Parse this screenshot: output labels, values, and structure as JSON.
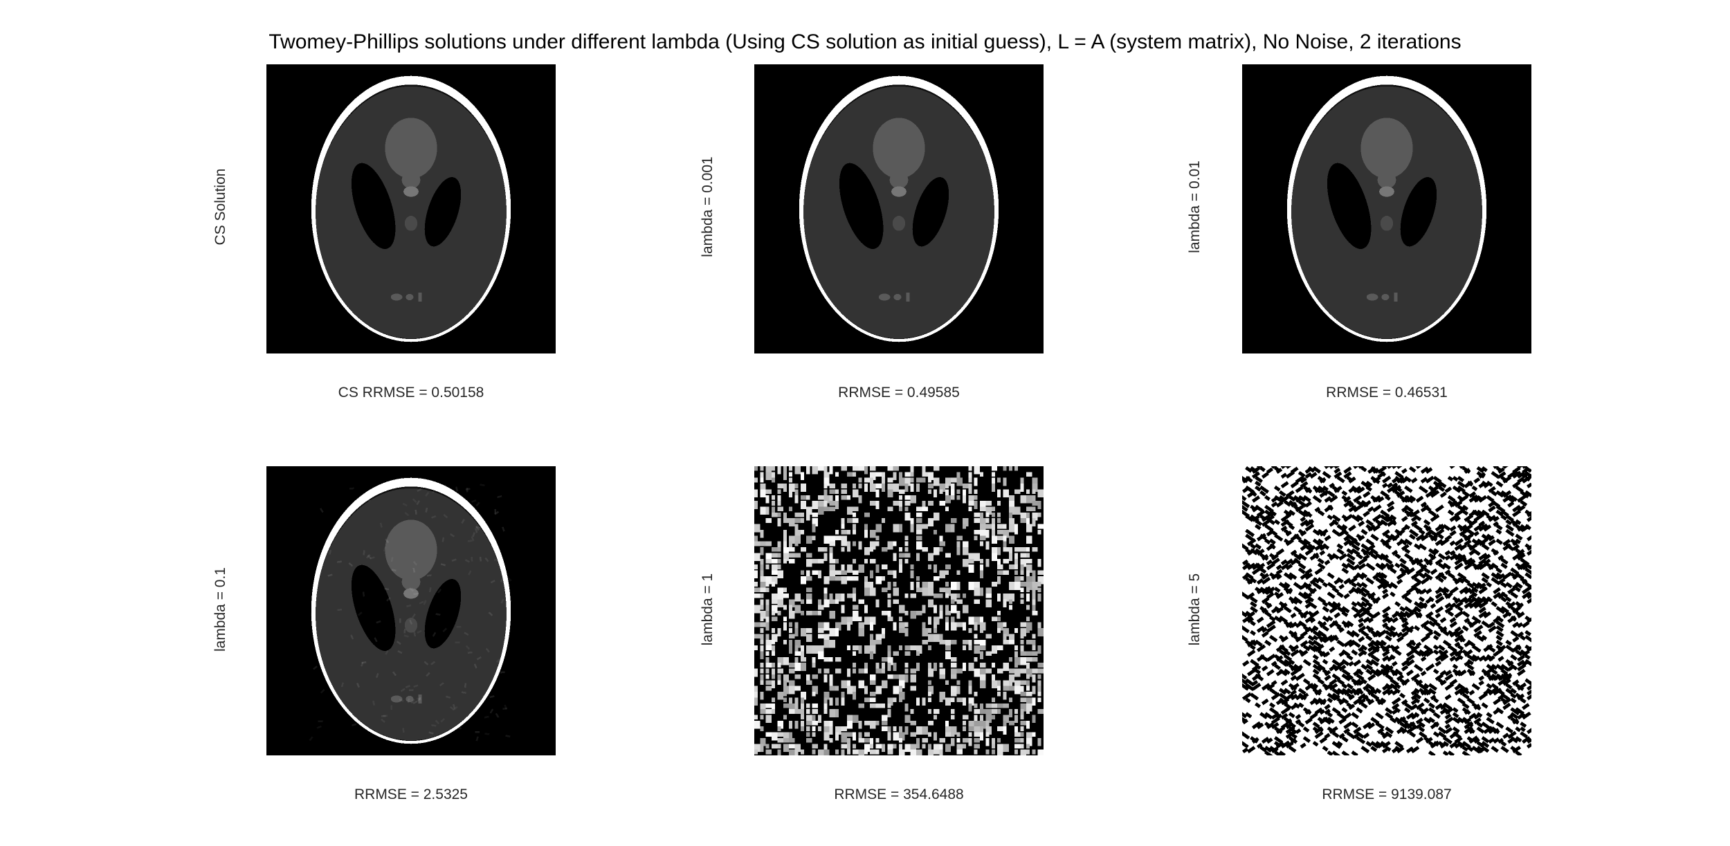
{
  "figure": {
    "title": "Twomey-Phillips solutions under different lambda (Using CS solution as initial guess), L = A (system matrix), No Noise, 2 iterations"
  },
  "panels": [
    {
      "ylabel": "CS Solution",
      "xlabel": "CS RRMSE = 0.50158",
      "kind": "clean"
    },
    {
      "ylabel": "lambda = 0.001",
      "xlabel": "RRMSE = 0.49585",
      "kind": "clean"
    },
    {
      "ylabel": "lambda = 0.01",
      "xlabel": "RRMSE = 0.46531",
      "kind": "clean"
    },
    {
      "ylabel": "lambda = 0.1",
      "xlabel": "RRMSE = 2.5325",
      "kind": "clean"
    },
    {
      "ylabel": "lambda = 1",
      "xlabel": "RRMSE = 354.6488",
      "kind": "noisy"
    },
    {
      "ylabel": "lambda = 5",
      "xlabel": "RRMSE = 9139.087",
      "kind": "random"
    }
  ]
}
